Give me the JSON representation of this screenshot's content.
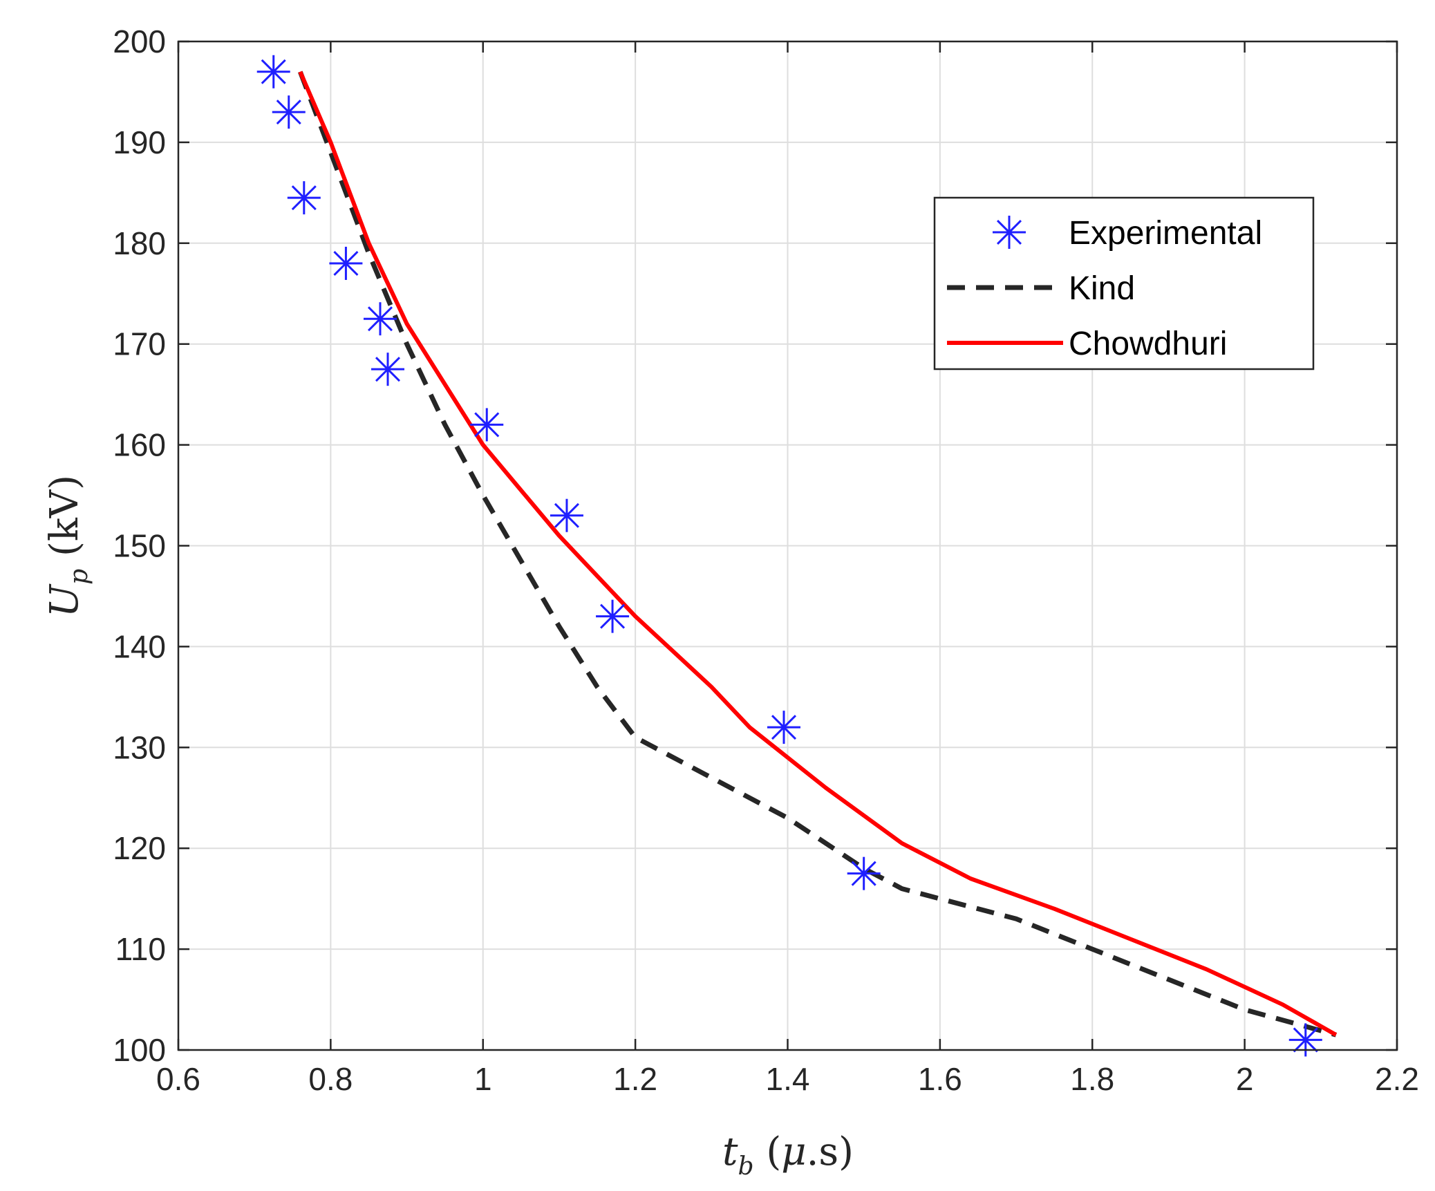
{
  "chart_data": {
    "type": "line",
    "title": "",
    "xlabel": "t_b (μ.s)",
    "ylabel": "U_p (kV)",
    "xlim": [
      0.6,
      2.2
    ],
    "ylim": [
      100,
      200
    ],
    "xticks": [
      0.6,
      0.8,
      1,
      1.2,
      1.4,
      1.6,
      1.8,
      2,
      2.2
    ],
    "xtick_labels": [
      "0.6",
      "0.8",
      "1",
      "1.2",
      "1.4",
      "1.6",
      "1.8",
      "2",
      "2.2"
    ],
    "yticks": [
      100,
      110,
      120,
      130,
      140,
      150,
      160,
      170,
      180,
      190,
      200
    ],
    "ytick_labels": [
      "100",
      "110",
      "120",
      "130",
      "140",
      "150",
      "160",
      "170",
      "180",
      "190",
      "200"
    ],
    "grid": true,
    "legend_position": "top-right",
    "series": [
      {
        "name": "Experimental",
        "style": "marker-asterisk",
        "color": "#1f1fff",
        "x": [
          0.725,
          0.745,
          0.765,
          0.82,
          0.865,
          0.875,
          1.005,
          1.11,
          1.17,
          1.395,
          1.5,
          2.08
        ],
        "y": [
          197,
          193,
          184.5,
          178,
          172.5,
          167.5,
          162,
          153,
          143,
          132,
          117.5,
          101
        ]
      },
      {
        "name": "Kind",
        "style": "dashed",
        "color": "#262626",
        "x": [
          0.76,
          0.8,
          0.85,
          0.9,
          0.95,
          1.0,
          1.05,
          1.1,
          1.15,
          1.2,
          1.3,
          1.4,
          1.5,
          1.55,
          1.6,
          1.7,
          1.8,
          1.9,
          2.0,
          2.12
        ],
        "y": [
          197,
          189,
          179,
          170,
          162,
          155,
          148.5,
          142,
          136,
          131,
          127,
          123,
          118,
          116,
          115,
          113,
          110,
          107,
          104,
          101.5
        ]
      },
      {
        "name": "Chowdhuri",
        "style": "solid",
        "color": "#ff0000",
        "x": [
          0.76,
          0.8,
          0.85,
          0.9,
          0.95,
          1.0,
          1.05,
          1.1,
          1.15,
          1.2,
          1.3,
          1.35,
          1.45,
          1.55,
          1.64,
          1.75,
          1.85,
          1.95,
          2.05,
          2.12
        ],
        "y": [
          197,
          190,
          180,
          172,
          166,
          160,
          155.5,
          151,
          147,
          143,
          136,
          132,
          126,
          120.5,
          117,
          114,
          111,
          108,
          104.5,
          101.5
        ]
      }
    ]
  }
}
